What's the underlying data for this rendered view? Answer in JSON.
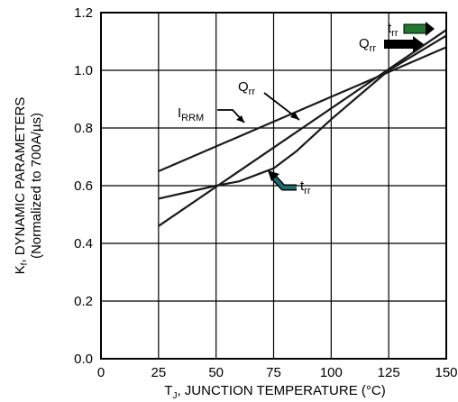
{
  "chart_data": {
    "type": "line",
    "ylabel_line1": "K",
    "ylabel_line1_sub": "f",
    "ylabel_line1_rest": ", DYNAMIC PARAMETERS",
    "ylabel_line2": "(Normalized to 700A/µs)",
    "xlabel_pre": "T",
    "xlabel_sub": "J",
    "xlabel_rest": ", JUNCTION TEMPERATURE (°C)",
    "xlim": [
      0,
      150
    ],
    "ylim": [
      0.0,
      1.2
    ],
    "xticks": [
      "0",
      "25",
      "50",
      "75",
      "100",
      "125",
      "150"
    ],
    "yticks": [
      "0.0",
      "0.2",
      "0.4",
      "0.6",
      "0.8",
      "1.0",
      "1.2"
    ],
    "grid": true,
    "series": [
      {
        "name": "IRRM",
        "label_main": "I",
        "label_sub": "RRM",
        "x": [
          25,
          150
        ],
        "y": [
          0.65,
          1.08
        ]
      },
      {
        "name": "Qrr",
        "label_main": "Q",
        "label_sub": "rr",
        "x": [
          25,
          150
        ],
        "y": [
          0.46,
          1.14
        ]
      },
      {
        "name": "trr",
        "label_main": "t",
        "label_sub": "rr",
        "x": [
          25,
          50,
          60,
          75,
          85,
          100,
          125,
          150
        ],
        "y": [
          0.555,
          0.6,
          0.615,
          0.66,
          0.72,
          0.83,
          1.0,
          1.12
        ]
      }
    ],
    "annotations": [
      {
        "text_main": "I",
        "text_sub": "RRM"
      },
      {
        "text_main": "Q",
        "text_sub": "rr"
      },
      {
        "text_main": "t",
        "text_sub": "rr"
      },
      {
        "text_main": "Q",
        "text_sub": "rr"
      },
      {
        "text_main": "t",
        "text_sub": "rr"
      }
    ],
    "arrow_colors": {
      "trr_upper": "#1e7a2c",
      "qrr_upper": "#000000",
      "trr_lower": "#1a6f73"
    }
  }
}
